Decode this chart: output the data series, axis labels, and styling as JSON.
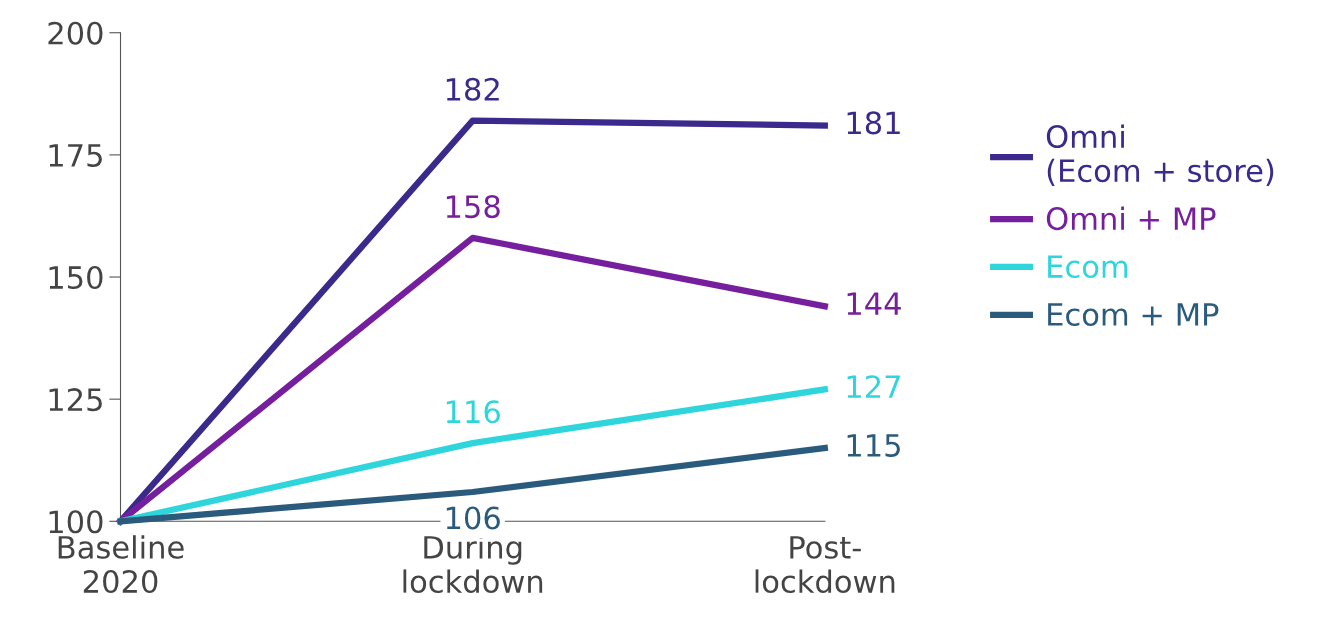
{
  "chart_data": {
    "type": "line",
    "categories": [
      "Baseline\n2020",
      "During\nlockdown",
      "Post-\nlockdown"
    ],
    "ylim": [
      100,
      200
    ],
    "yticks": [
      100,
      125,
      150,
      175,
      200
    ],
    "grid": false,
    "legend": "right",
    "marker": "none",
    "line_style": "solid",
    "series": [
      {
        "name": "Omni\n(Ecom + store)",
        "color": "#3b2a8c",
        "values": [
          100,
          182,
          181
        ],
        "value_labels": [
          null,
          "182",
          "181"
        ]
      },
      {
        "name": "Omni + MP",
        "color": "#761f9e",
        "values": [
          100,
          158,
          144
        ],
        "value_labels": [
          null,
          "158",
          "144"
        ]
      },
      {
        "name": "Ecom",
        "color": "#2ed6dc",
        "values": [
          100,
          116,
          127
        ],
        "value_labels": [
          null,
          "116",
          "127"
        ]
      },
      {
        "name": "Ecom + MP",
        "color": "#2b5b7c",
        "values": [
          100,
          106,
          115
        ],
        "value_labels": [
          null,
          "106",
          "115"
        ]
      }
    ]
  }
}
